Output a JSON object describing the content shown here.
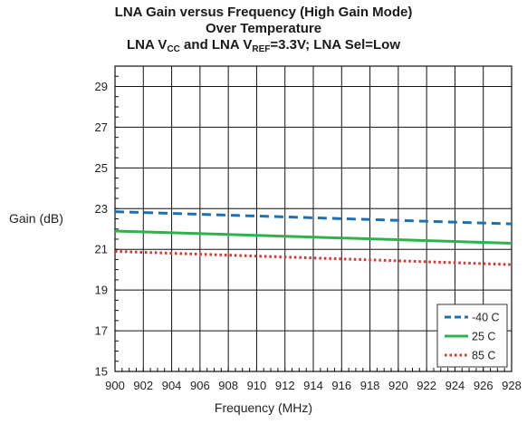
{
  "chart_data": {
    "type": "line",
    "title_line1": "LNA Gain versus Frequency (High Gain Mode)",
    "title_line2": "Over Temperature",
    "title_line3": {
      "p1": "LNA V",
      "sub1": "CC",
      "p2": " and LNA V",
      "sub2": "REF",
      "p3": "=3.3V; LNA Sel=Low"
    },
    "xlabel": "Frequency (MHz)",
    "ylabel": "Gain (dB)",
    "xlim": [
      900,
      928
    ],
    "ylim": [
      15,
      30
    ],
    "xticks": [
      900,
      902,
      904,
      906,
      908,
      910,
      912,
      914,
      916,
      918,
      920,
      922,
      924,
      926,
      928
    ],
    "yticks": [
      15,
      17,
      19,
      21,
      23,
      25,
      27,
      29
    ],
    "grid": true,
    "legend_position": "bottom-right",
    "series": [
      {
        "name": "-40 C",
        "color": "#1f6fb5",
        "style": "dashed",
        "x": [
          900,
          928
        ],
        "y": [
          22.85,
          22.25
        ]
      },
      {
        "name": "25 C",
        "color": "#2db34a",
        "style": "solid",
        "x": [
          900,
          928
        ],
        "y": [
          21.9,
          21.3
        ]
      },
      {
        "name": "85 C",
        "color": "#e0302a",
        "style": "dotted",
        "x": [
          900,
          928
        ],
        "y": [
          20.9,
          20.25
        ]
      }
    ]
  }
}
